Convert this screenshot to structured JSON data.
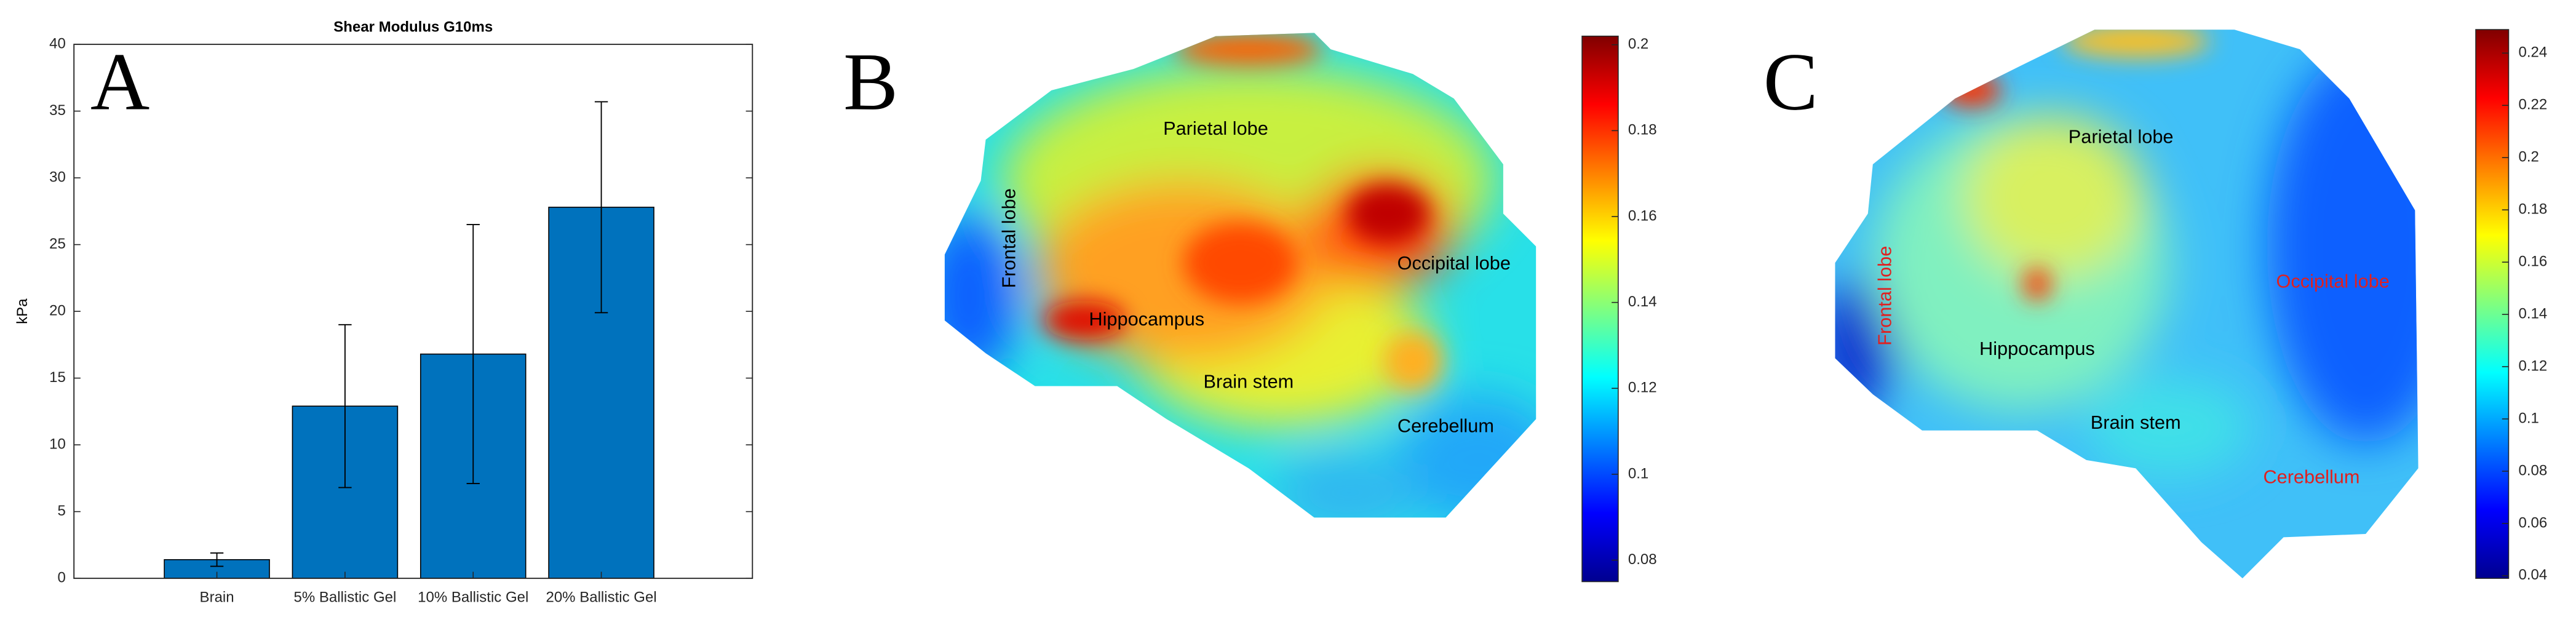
{
  "chart_data": [
    {
      "type": "bar",
      "panel_label": "A",
      "title": "Shear Modulus G10ms",
      "y_label": "kPa",
      "categories": [
        "Brain",
        "5% Ballistic Gel",
        "10% Ballistic Gel",
        "20% Ballistic Gel"
      ],
      "values": [
        1.4,
        12.9,
        16.8,
        27.8
      ],
      "errors": [
        0.5,
        6.1,
        9.7,
        7.9
      ],
      "color": "#0072bd",
      "ylim": [
        0,
        40
      ],
      "yticks": [
        0,
        5,
        10,
        15,
        20,
        25,
        30,
        35,
        40
      ]
    },
    {
      "type": "map",
      "panel_label": "B",
      "colormap": "jet",
      "labels": [
        {
          "text": "Parietal lobe",
          "color": "#000000"
        },
        {
          "text": "Frontal lobe",
          "color": "#000000"
        },
        {
          "text": "Occipital lobe",
          "color": "#000000"
        },
        {
          "text": "Hippocampus",
          "color": "#000000"
        },
        {
          "text": "Brain stem",
          "color": "#000000"
        },
        {
          "text": "Cerebellum",
          "color": "#000000"
        }
      ],
      "clim": [
        0.075,
        0.202
      ],
      "cticks": [
        0.08,
        0.1,
        0.12,
        0.14,
        0.16,
        0.18,
        0.2
      ]
    },
    {
      "type": "map",
      "panel_label": "C",
      "colormap": "jet",
      "labels": [
        {
          "text": "Parietal lobe",
          "color": "#000000"
        },
        {
          "text": "Frontal lobe",
          "color": "#e02020"
        },
        {
          "text": "Occipital lobe",
          "color": "#e02020"
        },
        {
          "text": "Hippocampus",
          "color": "#000000"
        },
        {
          "text": "Brain stem",
          "color": "#000000"
        },
        {
          "text": "Cerebellum",
          "color": "#e02020"
        }
      ],
      "clim": [
        0.039,
        0.249
      ],
      "cticks": [
        0.04,
        0.06,
        0.08,
        0.1,
        0.12,
        0.14,
        0.16,
        0.18,
        0.2,
        0.22,
        0.24
      ]
    }
  ]
}
